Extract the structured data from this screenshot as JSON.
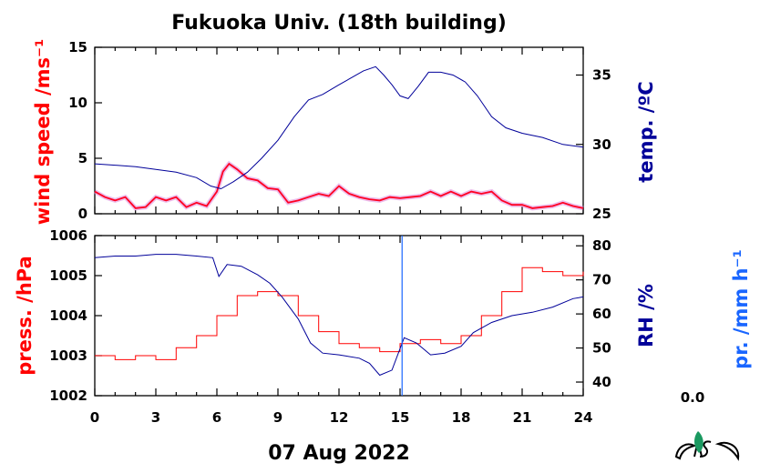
{
  "title": "Fukuoka Univ. (18th building)",
  "date_label": "07 Aug 2022",
  "rain_total": "0.0",
  "colors": {
    "wind": "#ff0022",
    "wind_raw": "#dd88dd",
    "temp": "#000099",
    "pressure": "#ff0000",
    "rh": "#000099",
    "rain": "#1a66ff"
  },
  "chart_data": [
    {
      "type": "line",
      "panel": "top",
      "y_left_label": "wind speed /ms⁻¹",
      "y_right_label": "temp. /ºC",
      "xlim": [
        0,
        24
      ],
      "x_ticks": [
        "0",
        "3",
        "6",
        "9",
        "12",
        "15",
        "18",
        "21",
        "24"
      ],
      "y_left": {
        "lim": [
          0,
          15
        ],
        "ticks": [
          "0",
          "5",
          "10",
          "15"
        ]
      },
      "y_right": {
        "lim": [
          25,
          37
        ],
        "ticks": [
          "25",
          "30",
          "35"
        ]
      },
      "series": [
        {
          "key": "wind",
          "axis": "left",
          "points": [
            [
              0,
              2.0
            ],
            [
              0.5,
              1.5
            ],
            [
              1,
              1.2
            ],
            [
              1.5,
              1.5
            ],
            [
              2,
              0.5
            ],
            [
              2.5,
              0.6
            ],
            [
              3,
              1.5
            ],
            [
              3.5,
              1.2
            ],
            [
              4,
              1.5
            ],
            [
              4.5,
              0.6
            ],
            [
              5,
              1.0
            ],
            [
              5.5,
              0.7
            ],
            [
              6,
              2.0
            ],
            [
              6.3,
              3.8
            ],
            [
              6.6,
              4.5
            ],
            [
              7,
              4.0
            ],
            [
              7.5,
              3.2
            ],
            [
              8,
              3.0
            ],
            [
              8.5,
              2.3
            ],
            [
              9,
              2.2
            ],
            [
              9.5,
              1.0
            ],
            [
              10,
              1.2
            ],
            [
              10.5,
              1.5
            ],
            [
              11,
              1.8
            ],
            [
              11.5,
              1.6
            ],
            [
              12,
              2.5
            ],
            [
              12.5,
              1.8
            ],
            [
              13,
              1.5
            ],
            [
              13.5,
              1.3
            ],
            [
              14,
              1.2
            ],
            [
              14.5,
              1.5
            ],
            [
              15,
              1.4
            ],
            [
              15.5,
              1.5
            ],
            [
              16,
              1.6
            ],
            [
              16.5,
              2.0
            ],
            [
              17,
              1.6
            ],
            [
              17.5,
              2.0
            ],
            [
              18,
              1.6
            ],
            [
              18.5,
              2.0
            ],
            [
              19,
              1.8
            ],
            [
              19.5,
              2.0
            ],
            [
              20,
              1.2
            ],
            [
              20.5,
              0.8
            ],
            [
              21,
              0.8
            ],
            [
              21.5,
              0.5
            ],
            [
              22,
              0.6
            ],
            [
              22.5,
              0.7
            ],
            [
              23,
              1.0
            ],
            [
              23.5,
              0.7
            ],
            [
              24,
              0.5
            ]
          ]
        },
        {
          "key": "temp",
          "axis": "right",
          "points": [
            [
              0,
              28.6
            ],
            [
              1,
              28.5
            ],
            [
              2,
              28.4
            ],
            [
              3,
              28.2
            ],
            [
              4,
              28.0
            ],
            [
              5,
              27.6
            ],
            [
              5.7,
              27.0
            ],
            [
              6.2,
              26.8
            ],
            [
              6.8,
              27.3
            ],
            [
              7.5,
              28.0
            ],
            [
              8.2,
              29.0
            ],
            [
              9,
              30.3
            ],
            [
              9.8,
              32.0
            ],
            [
              10.5,
              33.2
            ],
            [
              11.2,
              33.6
            ],
            [
              12,
              34.3
            ],
            [
              12.6,
              34.8
            ],
            [
              13.2,
              35.3
            ],
            [
              13.8,
              35.6
            ],
            [
              14.2,
              35.0
            ],
            [
              14.6,
              34.3
            ],
            [
              15.0,
              33.5
            ],
            [
              15.4,
              33.3
            ],
            [
              15.9,
              34.2
            ],
            [
              16.4,
              35.2
            ],
            [
              17.0,
              35.2
            ],
            [
              17.6,
              35.0
            ],
            [
              18.2,
              34.5
            ],
            [
              18.8,
              33.5
            ],
            [
              19.5,
              32.0
            ],
            [
              20.2,
              31.2
            ],
            [
              21,
              30.8
            ],
            [
              22,
              30.5
            ],
            [
              23,
              30.0
            ],
            [
              24,
              29.8
            ]
          ]
        }
      ]
    },
    {
      "type": "line",
      "panel": "bottom",
      "y_left_label": "press. /hPa",
      "y_right_label": "RH /%",
      "y_far_right_label": "pr. /mm h⁻¹",
      "xlim": [
        0,
        24
      ],
      "x_ticks": [
        "0",
        "3",
        "6",
        "9",
        "12",
        "15",
        "18",
        "21",
        "24"
      ],
      "y_left": {
        "lim": [
          1002,
          1006
        ],
        "ticks": [
          "1002",
          "1003",
          "1004",
          "1005",
          "1006"
        ]
      },
      "y_right": {
        "lim": [
          36,
          83
        ],
        "ticks": [
          "40",
          "50",
          "60",
          "70",
          "80"
        ]
      },
      "series": [
        {
          "key": "pressure",
          "axis": "left",
          "points": [
            [
              0,
              1003.0
            ],
            [
              1,
              1002.9
            ],
            [
              2,
              1003.0
            ],
            [
              3,
              1002.9
            ],
            [
              4,
              1003.2
            ],
            [
              5,
              1003.5
            ],
            [
              6,
              1004.0
            ],
            [
              7,
              1004.5
            ],
            [
              8,
              1004.6
            ],
            [
              9,
              1004.5
            ],
            [
              10,
              1004.0
            ],
            [
              11,
              1003.6
            ],
            [
              12,
              1003.3
            ],
            [
              13,
              1003.2
            ],
            [
              14,
              1003.1
            ],
            [
              15,
              1003.3
            ],
            [
              16,
              1003.4
            ],
            [
              17,
              1003.3
            ],
            [
              18,
              1003.5
            ],
            [
              19,
              1004.0
            ],
            [
              20,
              1004.6
            ],
            [
              21,
              1005.2
            ],
            [
              22,
              1005.1
            ],
            [
              23,
              1005.0
            ],
            [
              24,
              1005.1
            ]
          ]
        },
        {
          "key": "rh",
          "axis": "right",
          "points": [
            [
              0,
              76.5
            ],
            [
              1,
              77.0
            ],
            [
              2,
              77.0
            ],
            [
              3,
              77.5
            ],
            [
              4,
              77.5
            ],
            [
              5,
              77.0
            ],
            [
              5.8,
              76.5
            ],
            [
              6.1,
              71.0
            ],
            [
              6.5,
              74.5
            ],
            [
              7.2,
              74.0
            ],
            [
              8,
              71.5
            ],
            [
              8.6,
              69.0
            ],
            [
              9.2,
              65.0
            ],
            [
              10,
              58.5
            ],
            [
              10.6,
              51.5
            ],
            [
              11.2,
              48.5
            ],
            [
              12,
              48.0
            ],
            [
              13,
              47.0
            ],
            [
              13.5,
              45.5
            ],
            [
              14,
              42.0
            ],
            [
              14.6,
              43.5
            ],
            [
              15.2,
              53.0
            ],
            [
              15.8,
              51.5
            ],
            [
              16.5,
              48.0
            ],
            [
              17.2,
              48.5
            ],
            [
              18,
              50.5
            ],
            [
              18.6,
              54.5
            ],
            [
              19.5,
              57.5
            ],
            [
              20.5,
              59.5
            ],
            [
              21.5,
              60.5
            ],
            [
              22.5,
              62.0
            ],
            [
              23.5,
              64.5
            ],
            [
              24,
              65.0
            ]
          ]
        },
        {
          "key": "rain",
          "axis": "none",
          "marker_x": 15.1
        }
      ]
    }
  ]
}
